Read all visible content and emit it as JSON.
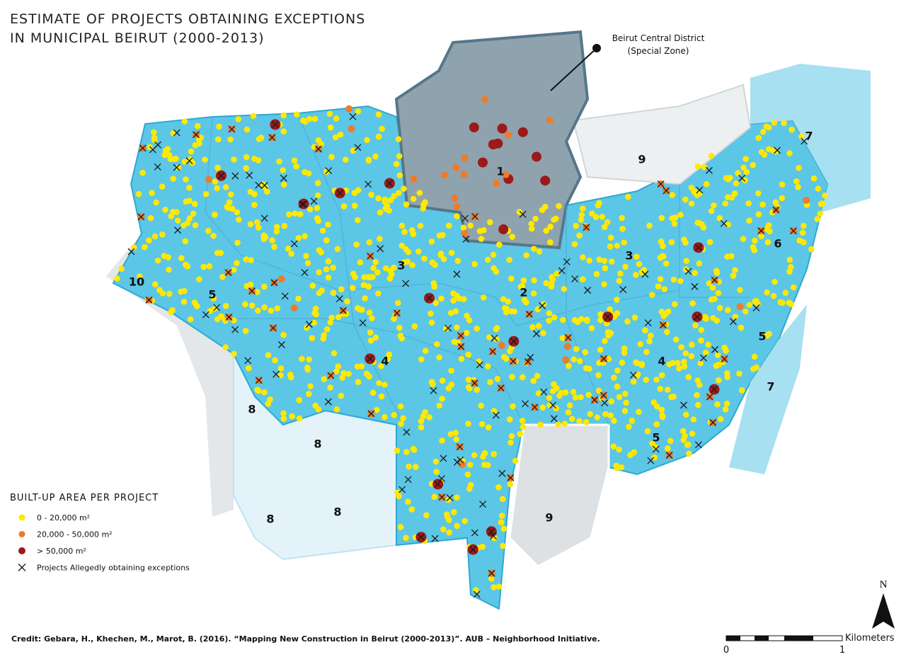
{
  "title": {
    "line1": "ESTIMATE OF PROJECTS OBTAINING EXCEPTIONS",
    "line2": "IN MUNICIPAL BEIRUT (2000-2013)"
  },
  "callout": {
    "line1": "Beirut Central District",
    "line2": "(Special Zone)"
  },
  "zone_labels": [
    "1",
    "9",
    "7",
    "3",
    "3",
    "6",
    "10",
    "5",
    "2",
    "4",
    "4",
    "5",
    "7",
    "8",
    "8",
    "5",
    "8",
    "8",
    "9"
  ],
  "legend": {
    "title": "BUILT-UP AREA PER PROJECT",
    "items": [
      {
        "label": "0 - 20,000 m²",
        "color": "#ffe900"
      },
      {
        "label": "20,000 - 50,000 m²",
        "color": "#ef7a2a"
      },
      {
        "label": "> 50,000 m²",
        "color": "#9b1a1a"
      },
      {
        "label": "Projects Allegedly obtaining exceptions",
        "color": "#1a1a1a"
      }
    ]
  },
  "credit": "Credit: Gebara, H., Khechen, M., Marot, B. (2016). “Mapping New Construction in Beirut (2000-2013)”. AUB – Neighborhood Initiative.",
  "north": "N",
  "scale": {
    "unit": "Kilometers",
    "ticks": [
      "0",
      "1"
    ]
  }
}
